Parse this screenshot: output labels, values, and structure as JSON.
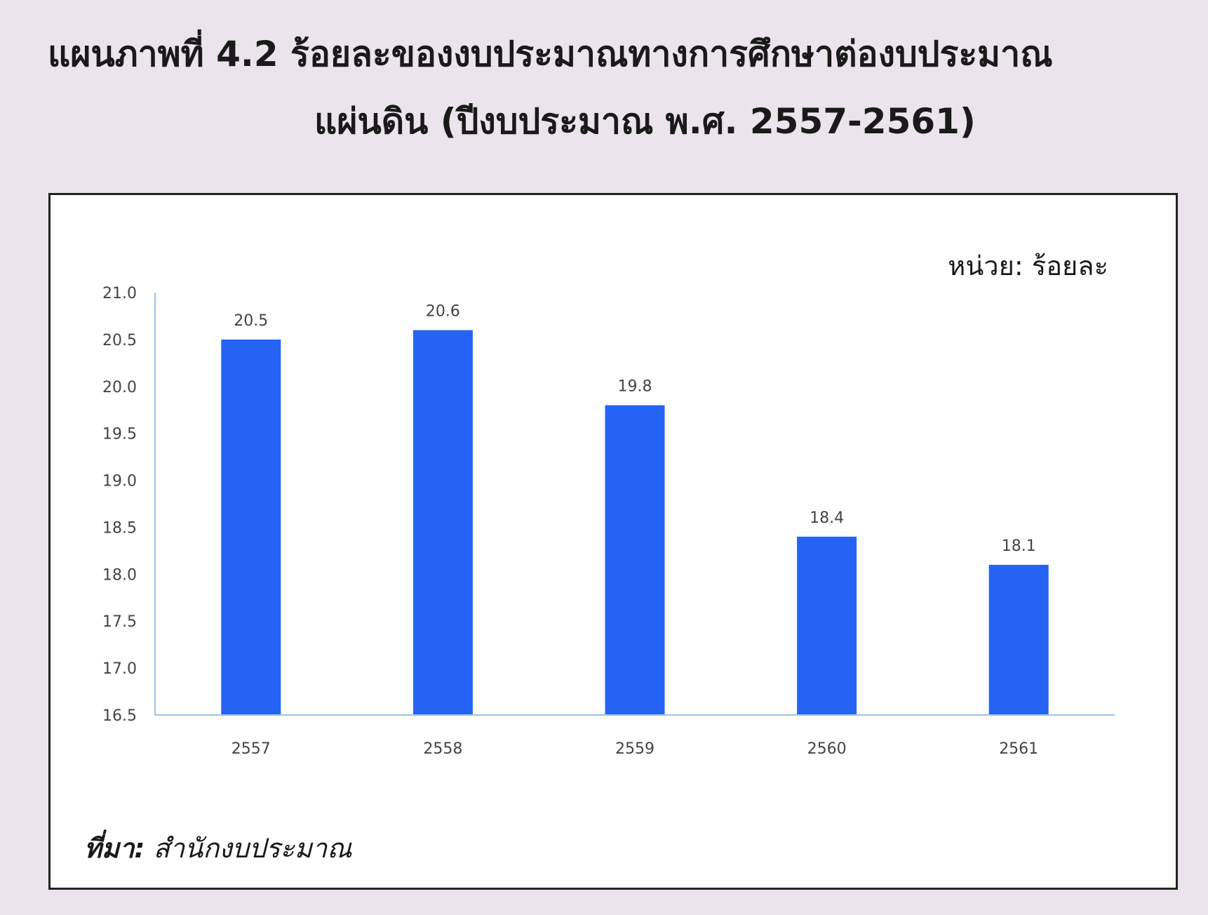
{
  "title": {
    "line1": "แผนภาพที่ 4.2  ร้อยละของงบประมาณทางการศึกษาต่องบประมาณ",
    "line2": "แผ่นดิน  (ปีงบประมาณ พ.ศ. 2557-2561)"
  },
  "unit_label": "หน่วย: ร้อยละ",
  "source": {
    "label": "ที่มา:",
    "value": " สำนักงบประมาณ"
  },
  "colors": {
    "bar": "#2563f5",
    "axis": "#9cc3e6",
    "background": "#ebe4ec"
  },
  "chart_data": {
    "type": "bar",
    "categories": [
      "2557",
      "2558",
      "2559",
      "2560",
      "2561"
    ],
    "values": [
      20.5,
      20.6,
      19.8,
      18.4,
      18.1
    ],
    "data_labels": [
      "20.5",
      "20.6",
      "19.8",
      "18.4",
      "18.1"
    ],
    "title": "",
    "xlabel": "",
    "ylabel": "",
    "ylim": [
      16.5,
      21.0
    ],
    "yticks": [
      "16.5",
      "17.0",
      "17.5",
      "18.0",
      "18.5",
      "19.0",
      "19.5",
      "20.0",
      "20.5",
      "21.0"
    ],
    "grid": false,
    "legend": "none"
  }
}
